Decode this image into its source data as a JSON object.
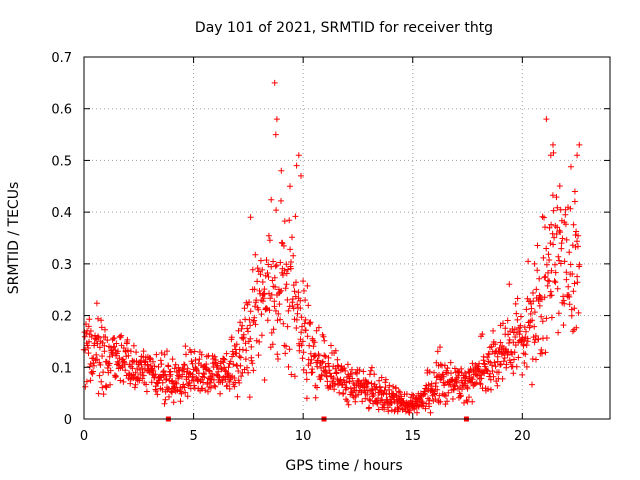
{
  "chart_data": {
    "type": "scatter",
    "title": "Day 101 of 2021, SRMTID for receiver thtg",
    "xlabel": "GPS time / hours",
    "ylabel": "SRMTID / TECUs",
    "xlim": [
      0,
      24
    ],
    "ylim": [
      0,
      0.7
    ],
    "xticks": [
      0,
      5,
      10,
      15,
      20
    ],
    "xtick_labels": [
      "0",
      "5",
      "10",
      "15",
      "20"
    ],
    "yticks": [
      0,
      0.1,
      0.2,
      0.3,
      0.4,
      0.5,
      0.6,
      0.7
    ],
    "ytick_labels": [
      "0",
      "0.1",
      "0.2",
      "0.3",
      "0.4",
      "0.5",
      "0.6",
      "0.7"
    ],
    "grid": true,
    "marker": "+",
    "color": "#ff0000",
    "series": [
      {
        "name": "SRMTID",
        "profile_x": [
          0,
          0.5,
          1,
          1.5,
          2,
          2.5,
          3,
          3.5,
          4,
          4.5,
          5,
          5.5,
          6,
          6.5,
          7,
          7.5,
          8,
          8.5,
          9,
          9.5,
          10,
          10.5,
          11,
          11.5,
          12,
          12.5,
          13,
          13.5,
          14,
          14.5,
          15,
          15.5,
          16,
          16.5,
          17,
          17.5,
          18,
          18.5,
          19,
          19.5,
          20,
          20.5,
          21,
          21.5,
          22,
          22.5
        ],
        "profile_y": [
          0.15,
          0.13,
          0.12,
          0.12,
          0.11,
          0.1,
          0.09,
          0.08,
          0.07,
          0.08,
          0.09,
          0.09,
          0.09,
          0.09,
          0.1,
          0.16,
          0.22,
          0.24,
          0.25,
          0.24,
          0.16,
          0.12,
          0.1,
          0.08,
          0.07,
          0.06,
          0.06,
          0.05,
          0.04,
          0.03,
          0.03,
          0.04,
          0.06,
          0.07,
          0.06,
          0.07,
          0.09,
          0.1,
          0.12,
          0.14,
          0.15,
          0.18,
          0.25,
          0.33,
          0.32,
          0.3
        ],
        "profile_spread": [
          0.035,
          0.03,
          0.03,
          0.025,
          0.025,
          0.02,
          0.02,
          0.02,
          0.02,
          0.02,
          0.025,
          0.02,
          0.02,
          0.02,
          0.03,
          0.05,
          0.07,
          0.07,
          0.08,
          0.07,
          0.05,
          0.03,
          0.025,
          0.02,
          0.02,
          0.02,
          0.02,
          0.015,
          0.012,
          0.01,
          0.01,
          0.015,
          0.02,
          0.02,
          0.02,
          0.02,
          0.025,
          0.025,
          0.03,
          0.035,
          0.04,
          0.05,
          0.07,
          0.08,
          0.07,
          0.06
        ],
        "x_end": 22.6,
        "point_count": 1400,
        "notable_points": [
          {
            "x": 8.7,
            "y": 0.65
          },
          {
            "x": 8.8,
            "y": 0.58
          },
          {
            "x": 8.75,
            "y": 0.55
          },
          {
            "x": 9.0,
            "y": 0.48
          },
          {
            "x": 9.8,
            "y": 0.51
          },
          {
            "x": 9.7,
            "y": 0.49
          },
          {
            "x": 9.9,
            "y": 0.47
          },
          {
            "x": 21.1,
            "y": 0.58
          },
          {
            "x": 21.4,
            "y": 0.53
          },
          {
            "x": 21.3,
            "y": 0.51
          },
          {
            "x": 22.6,
            "y": 0.53
          },
          {
            "x": 22.5,
            "y": 0.51
          },
          {
            "x": 22.4,
            "y": 0.44
          },
          {
            "x": 7.6,
            "y": 0.39
          },
          {
            "x": 9.4,
            "y": 0.45
          }
        ],
        "gap_markers_x": [
          3.85,
          10.95,
          17.45
        ]
      }
    ]
  }
}
